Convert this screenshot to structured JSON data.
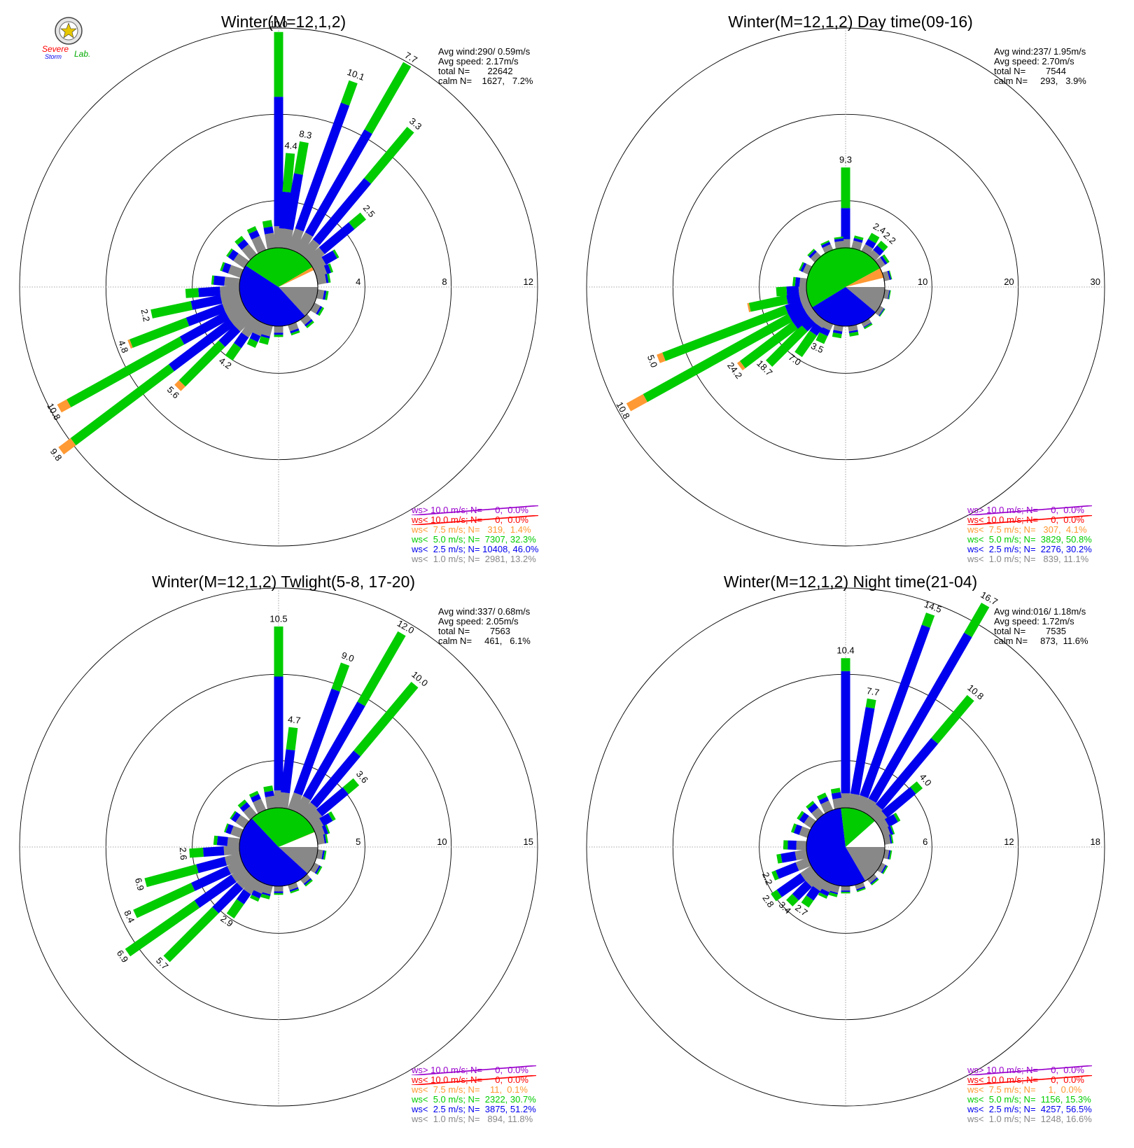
{
  "logo": {
    "line1": "Severe",
    "line2": "Storm",
    "line3": "Lab."
  },
  "colors": {
    "gt10": "#9900cc",
    "lt10": "#ff0000",
    "lt75": "#ff9933",
    "lt5": "#00cc00",
    "lt25": "#0000ee",
    "lt1": "#888888"
  },
  "chart_data": [
    {
      "type": "windrose",
      "title": "Winter(M=12,1,2)",
      "stats": [
        "Avg wind:290/ 0.59m/s",
        "Avg speed: 2.17m/s",
        "total N=       22642",
        "calm N=    1627,   7.2%"
      ],
      "rings": [
        "4",
        "8",
        "12"
      ],
      "rmax": 12,
      "legend": [
        "ws> 10.0 m/s; N=     0,  0.0%",
        "ws< 10.0 m/s; N=     0,  0.0%",
        "ws<  7.5 m/s; N=   319,  1.4%",
        "ws<  5.0 m/s; N=  7307, 32.3%",
        "ws<  2.5 m/s; N= 10408, 46.0%",
        "ws<  1.0 m/s; N=  2981, 13.2%"
      ],
      "labels": [
        "10.0",
        "4.4",
        "8.3",
        "10.1",
        "7.7",
        "3.3",
        "2.5",
        "4.2",
        "5.6",
        "9.8",
        "10.8",
        "4.8",
        "2.2"
      ],
      "speed_pie": [
        13.2,
        46.0,
        32.3,
        1.4
      ],
      "bars": [
        {
          "dir": 0,
          "v": [
            1.0,
            7.0,
            10.0,
            10.0
          ]
        },
        {
          "dir": 5,
          "v": [
            0.9,
            2.6,
            4.4,
            4.4
          ]
        },
        {
          "dir": 10,
          "v": [
            0.9,
            3.5,
            5.0,
            5.0
          ]
        },
        {
          "dir": 20,
          "v": [
            1.0,
            7.2,
            8.3,
            8.3
          ]
        },
        {
          "dir": 30,
          "v": [
            1.0,
            6.5,
            10.1,
            10.1
          ]
        },
        {
          "dir": 40,
          "v": [
            0.9,
            4.6,
            7.7,
            7.7
          ]
        },
        {
          "dir": 50,
          "v": [
            0.8,
            2.6,
            3.3,
            3.3
          ]
        },
        {
          "dir": 60,
          "v": [
            0.6,
            1.2,
            1.3,
            1.3
          ]
        },
        {
          "dir": 70,
          "v": [
            0.5,
            0.7,
            0.8,
            0.8
          ]
        },
        {
          "dir": 80,
          "v": [
            0.4,
            0.5,
            0.6,
            0.6
          ]
        },
        {
          "dir": 100,
          "v": [
            0.3,
            0.4,
            0.5,
            0.5
          ]
        },
        {
          "dir": 120,
          "v": [
            0.3,
            0.4,
            0.5,
            0.5
          ]
        },
        {
          "dir": 140,
          "v": [
            0.3,
            0.4,
            0.5,
            0.5
          ]
        },
        {
          "dir": 160,
          "v": [
            0.3,
            0.4,
            0.5,
            0.5
          ]
        },
        {
          "dir": 180,
          "v": [
            0.3,
            0.4,
            0.5,
            0.5
          ]
        },
        {
          "dir": 195,
          "v": [
            0.5,
            0.6,
            0.9,
            0.9
          ]
        },
        {
          "dir": 205,
          "v": [
            0.6,
            0.9,
            1.2,
            1.2
          ]
        },
        {
          "dir": 215,
          "v": [
            0.9,
            1.5,
            2.2,
            2.2
          ]
        },
        {
          "dir": 225,
          "v": [
            0.9,
            1.9,
            4.5,
            4.8
          ]
        },
        {
          "dir": 233,
          "v": [
            0.9,
            4.4,
            10.1,
            10.8
          ]
        },
        {
          "dir": 241,
          "v": [
            0.9,
            3.3,
            9.3,
            9.8
          ]
        },
        {
          "dir": 249,
          "v": [
            0.9,
            2.7,
            5.5,
            5.6
          ]
        },
        {
          "dir": 258,
          "v": [
            0.9,
            2.3,
            4.2,
            4.2
          ]
        },
        {
          "dir": 266,
          "v": [
            0.9,
            1.9,
            2.5,
            2.5
          ]
        },
        {
          "dir": 276,
          "v": [
            0.7,
            1.2,
            1.3,
            1.3
          ]
        },
        {
          "dir": 290,
          "v": [
            0.6,
            0.9,
            1.0,
            1.0
          ]
        },
        {
          "dir": 305,
          "v": [
            0.6,
            0.9,
            1.0,
            1.0
          ]
        },
        {
          "dir": 320,
          "v": [
            0.6,
            0.9,
            1.1,
            1.1
          ]
        },
        {
          "dir": 335,
          "v": [
            0.7,
            1.0,
            1.2,
            1.2
          ]
        },
        {
          "dir": 350,
          "v": [
            0.7,
            1.0,
            1.3,
            1.3
          ]
        }
      ]
    },
    {
      "type": "windrose",
      "title": "Winter(M=12,1,2) Day time(09-16)",
      "stats": [
        "Avg wind:237/ 1.95m/s",
        "Avg speed: 2.70m/s",
        "total N=        7544",
        "calm N=     293,   3.9%"
      ],
      "rings": [
        "10",
        "20",
        "30"
      ],
      "rmax": 30,
      "legend": [
        "ws> 10.0 m/s; N=     0,  0.0%",
        "ws< 10.0 m/s; N=     0,  0.0%",
        "ws<  7.5 m/s; N=   307,  4.1%",
        "ws<  5.0 m/s; N=  3829, 50.8%",
        "ws<  2.5 m/s; N=  2276, 30.2%",
        "ws<  1.0 m/s; N=   839, 11.1%"
      ],
      "labels": [
        "9.3",
        "2.4",
        "2.2",
        "3.5",
        "7.0",
        "18.7",
        "24.2",
        "10.8",
        "5.0"
      ],
      "speed_pie": [
        11.1,
        30.2,
        50.8,
        4.1
      ],
      "bars": [
        {
          "dir": 0,
          "v": [
            1.0,
            4.6,
            9.3,
            9.3
          ]
        },
        {
          "dir": 15,
          "v": [
            0.9,
            1.2,
            1.5,
            1.5
          ]
        },
        {
          "dir": 30,
          "v": [
            0.9,
            1.6,
            2.4,
            2.4
          ]
        },
        {
          "dir": 42,
          "v": [
            0.8,
            1.5,
            2.2,
            2.2
          ]
        },
        {
          "dir": 55,
          "v": [
            0.7,
            1.0,
            1.3,
            1.3
          ]
        },
        {
          "dir": 75,
          "v": [
            0.6,
            0.8,
            0.9,
            0.9
          ]
        },
        {
          "dir": 100,
          "v": [
            0.5,
            0.6,
            0.7,
            0.7
          ]
        },
        {
          "dir": 125,
          "v": [
            0.5,
            0.6,
            0.7,
            0.7
          ]
        },
        {
          "dir": 150,
          "v": [
            0.5,
            0.6,
            0.8,
            0.8
          ]
        },
        {
          "dir": 170,
          "v": [
            0.6,
            0.8,
            1.2,
            1.2
          ]
        },
        {
          "dir": 190,
          "v": [
            0.6,
            0.9,
            1.4,
            1.4
          ]
        },
        {
          "dir": 205,
          "v": [
            0.8,
            1.5,
            2.5,
            2.5
          ]
        },
        {
          "dir": 215,
          "v": [
            0.9,
            2.0,
            5.0,
            5.0
          ]
        },
        {
          "dir": 225,
          "v": [
            0.9,
            2.2,
            8.0,
            8.0
          ]
        },
        {
          "dir": 233,
          "v": [
            0.9,
            2.8,
            10.4,
            10.8
          ]
        },
        {
          "dir": 241,
          "v": [
            0.9,
            2.8,
            22.0,
            24.2
          ]
        },
        {
          "dir": 249,
          "v": [
            0.9,
            2.8,
            18.0,
            18.7
          ]
        },
        {
          "dir": 258,
          "v": [
            0.9,
            2.4,
            6.8,
            7.0
          ]
        },
        {
          "dir": 266,
          "v": [
            0.9,
            2.3,
            3.5,
            3.5
          ]
        },
        {
          "dir": 276,
          "v": [
            0.8,
            1.3,
            1.6,
            1.6
          ]
        },
        {
          "dir": 295,
          "v": [
            0.7,
            1.0,
            1.2,
            1.2
          ]
        },
        {
          "dir": 315,
          "v": [
            0.7,
            1.0,
            1.2,
            1.2
          ]
        },
        {
          "dir": 335,
          "v": [
            0.7,
            1.0,
            1.2,
            1.2
          ]
        },
        {
          "dir": 352,
          "v": [
            0.8,
            1.1,
            1.3,
            1.3
          ]
        }
      ]
    },
    {
      "type": "windrose",
      "title": "Winter(M=12,1,2) Twlight(5-8, 17-20)",
      "stats": [
        "Avg wind:337/ 0.68m/s",
        "Avg speed: 2.05m/s",
        "total N=        7563",
        "calm N=     461,   6.1%"
      ],
      "rings": [
        "5",
        "10",
        "15"
      ],
      "rmax": 15,
      "legend": [
        "ws> 10.0 m/s; N=     0,  0.0%",
        "ws< 10.0 m/s; N=     0,  0.0%",
        "ws<  7.5 m/s; N=    11,  0.1%",
        "ws<  5.0 m/s; N=  2322, 30.7%",
        "ws<  2.5 m/s; N=  3875, 51.2%",
        "ws<  1.0 m/s; N=   894, 11.8%"
      ],
      "labels": [
        "10.5",
        "4.7",
        "9.0",
        "12.0",
        "10.0",
        "3.6",
        "2.9",
        "5.7",
        "6.9",
        "8.4",
        "6.9",
        "2.6"
      ],
      "speed_pie": [
        11.8,
        51.2,
        30.7,
        0.1
      ],
      "bars": [
        {
          "dir": 0,
          "v": [
            1.0,
            7.6,
            10.5,
            10.5
          ]
        },
        {
          "dir": 7,
          "v": [
            0.9,
            3.4,
            4.7,
            4.7
          ]
        },
        {
          "dir": 20,
          "v": [
            1.0,
            7.4,
            9.0,
            9.0
          ]
        },
        {
          "dir": 30,
          "v": [
            1.0,
            7.3,
            12.0,
            12.0
          ]
        },
        {
          "dir": 40,
          "v": [
            0.9,
            4.8,
            10.0,
            10.0
          ]
        },
        {
          "dir": 50,
          "v": [
            0.8,
            2.8,
            3.6,
            3.6
          ]
        },
        {
          "dir": 60,
          "v": [
            0.6,
            1.2,
            1.4,
            1.4
          ]
        },
        {
          "dir": 70,
          "v": [
            0.5,
            0.7,
            0.8,
            0.8
          ]
        },
        {
          "dir": 80,
          "v": [
            0.4,
            0.5,
            0.6,
            0.6
          ]
        },
        {
          "dir": 100,
          "v": [
            0.3,
            0.4,
            0.5,
            0.5
          ]
        },
        {
          "dir": 120,
          "v": [
            0.3,
            0.4,
            0.5,
            0.5
          ]
        },
        {
          "dir": 140,
          "v": [
            0.3,
            0.4,
            0.5,
            0.5
          ]
        },
        {
          "dir": 160,
          "v": [
            0.3,
            0.4,
            0.5,
            0.5
          ]
        },
        {
          "dir": 180,
          "v": [
            0.3,
            0.4,
            0.5,
            0.5
          ]
        },
        {
          "dir": 195,
          "v": [
            0.5,
            0.6,
            0.8,
            0.8
          ]
        },
        {
          "dir": 205,
          "v": [
            0.6,
            0.9,
            1.1,
            1.1
          ]
        },
        {
          "dir": 215,
          "v": [
            0.9,
            1.6,
            2.6,
            2.6
          ]
        },
        {
          "dir": 225,
          "v": [
            0.9,
            2.9,
            6.9,
            6.9
          ]
        },
        {
          "dir": 235,
          "v": [
            0.9,
            3.5,
            8.4,
            8.4
          ]
        },
        {
          "dir": 245,
          "v": [
            0.9,
            3.2,
            6.9,
            6.9
          ]
        },
        {
          "dir": 255,
          "v": [
            0.9,
            2.6,
            5.7,
            5.7
          ]
        },
        {
          "dir": 266,
          "v": [
            0.9,
            2.1,
            2.9,
            2.9
          ]
        },
        {
          "dir": 276,
          "v": [
            0.7,
            1.3,
            1.5,
            1.5
          ]
        },
        {
          "dir": 290,
          "v": [
            0.6,
            0.9,
            1.0,
            1.0
          ]
        },
        {
          "dir": 305,
          "v": [
            0.6,
            0.9,
            1.0,
            1.0
          ]
        },
        {
          "dir": 320,
          "v": [
            0.6,
            0.9,
            1.1,
            1.1
          ]
        },
        {
          "dir": 335,
          "v": [
            0.7,
            1.0,
            1.2,
            1.2
          ]
        },
        {
          "dir": 350,
          "v": [
            0.7,
            1.0,
            1.3,
            1.3
          ]
        }
      ]
    },
    {
      "type": "windrose",
      "title": "Winter(M=12,1,2) Night time(21-04)",
      "stats": [
        "Avg wind:016/ 1.18m/s",
        "Avg speed: 1.72m/s",
        "total N=        7535",
        "calm N=     873,  11.6%"
      ],
      "rings": [
        "6",
        "12",
        "18"
      ],
      "rmax": 18,
      "legend": [
        "ws> 10.0 m/s; N=     0,  0.0%",
        "ws< 10.0 m/s; N=     0,  0.0%",
        "ws<  7.5 m/s; N=     1,  0.0%",
        "ws<  5.0 m/s; N=  1156, 15.3%",
        "ws<  2.5 m/s; N=  4257, 56.5%",
        "ws<  1.0 m/s; N=  1248, 16.6%"
      ],
      "labels": [
        "10.4",
        "7.7",
        "14.5",
        "16.7",
        "10.8",
        "4.0",
        "2.7",
        "3.4",
        "2.8",
        "2.2"
      ],
      "speed_pie": [
        16.6,
        56.5,
        15.3,
        0.0
      ],
      "bars": [
        {
          "dir": 0,
          "v": [
            1.0,
            9.5,
            10.4,
            10.4
          ]
        },
        {
          "dir": 10,
          "v": [
            1.0,
            7.1,
            7.7,
            7.7
          ]
        },
        {
          "dir": 20,
          "v": [
            1.0,
            13.6,
            14.5,
            14.5
          ]
        },
        {
          "dir": 30,
          "v": [
            1.0,
            14.3,
            16.7,
            16.7
          ]
        },
        {
          "dir": 40,
          "v": [
            0.9,
            6.9,
            10.8,
            10.8
          ]
        },
        {
          "dir": 50,
          "v": [
            0.8,
            3.4,
            4.0,
            4.0
          ]
        },
        {
          "dir": 60,
          "v": [
            0.6,
            1.3,
            1.5,
            1.5
          ]
        },
        {
          "dir": 70,
          "v": [
            0.5,
            0.7,
            0.8,
            0.8
          ]
        },
        {
          "dir": 80,
          "v": [
            0.4,
            0.5,
            0.6,
            0.6
          ]
        },
        {
          "dir": 100,
          "v": [
            0.3,
            0.4,
            0.5,
            0.5
          ]
        },
        {
          "dir": 120,
          "v": [
            0.3,
            0.4,
            0.5,
            0.5
          ]
        },
        {
          "dir": 140,
          "v": [
            0.3,
            0.4,
            0.5,
            0.5
          ]
        },
        {
          "dir": 160,
          "v": [
            0.3,
            0.4,
            0.5,
            0.5
          ]
        },
        {
          "dir": 180,
          "v": [
            0.3,
            0.4,
            0.5,
            0.5
          ]
        },
        {
          "dir": 195,
          "v": [
            0.5,
            0.6,
            0.8,
            0.8
          ]
        },
        {
          "dir": 205,
          "v": [
            0.6,
            0.9,
            1.1,
            1.1
          ]
        },
        {
          "dir": 215,
          "v": [
            0.8,
            1.6,
            2.2,
            2.2
          ]
        },
        {
          "dir": 225,
          "v": [
            0.9,
            2.2,
            2.8,
            2.8
          ]
        },
        {
          "dir": 235,
          "v": [
            0.9,
            2.9,
            3.4,
            3.4
          ]
        },
        {
          "dir": 248,
          "v": [
            0.9,
            2.4,
            2.7,
            2.7
          ]
        },
        {
          "dir": 260,
          "v": [
            0.8,
            1.8,
            2.1,
            2.1
          ]
        },
        {
          "dir": 272,
          "v": [
            0.7,
            1.3,
            1.6,
            1.6
          ]
        },
        {
          "dir": 290,
          "v": [
            0.6,
            1.0,
            1.2,
            1.2
          ]
        },
        {
          "dir": 305,
          "v": [
            0.6,
            1.0,
            1.2,
            1.2
          ]
        },
        {
          "dir": 320,
          "v": [
            0.6,
            1.0,
            1.2,
            1.2
          ]
        },
        {
          "dir": 335,
          "v": [
            0.7,
            1.0,
            1.3,
            1.3
          ]
        },
        {
          "dir": 350,
          "v": [
            0.7,
            1.1,
            1.4,
            1.4
          ]
        }
      ]
    }
  ]
}
